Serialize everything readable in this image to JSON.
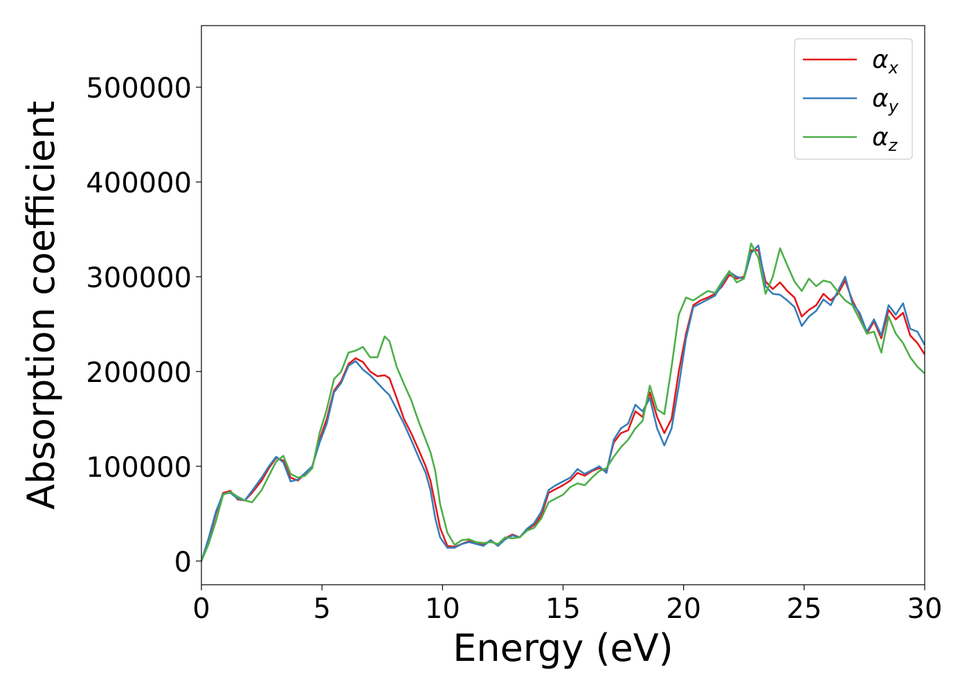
{
  "chart_data": {
    "type": "line",
    "title": "",
    "xlabel": "Energy (eV)",
    "ylabel": "Absorption coefficient",
    "xlim": [
      0,
      30
    ],
    "ylim": [
      -25000,
      565000
    ],
    "xticks": [
      0,
      5,
      10,
      15,
      20,
      25,
      30
    ],
    "yticks": [
      0,
      100000,
      200000,
      300000,
      400000,
      500000
    ],
    "grid": false,
    "legend_position": "top-right",
    "series": [
      {
        "name": "α_x",
        "base": "α",
        "sub": "x",
        "color": "#e41a1c",
        "points": [
          [
            0,
            0
          ],
          [
            0.3,
            22000
          ],
          [
            0.6,
            50000
          ],
          [
            0.9,
            72000
          ],
          [
            1.2,
            74000
          ],
          [
            1.5,
            65000
          ],
          [
            1.8,
            64000
          ],
          [
            2.1,
            72000
          ],
          [
            2.5,
            85000
          ],
          [
            2.8,
            98000
          ],
          [
            3.1,
            109000
          ],
          [
            3.4,
            106000
          ],
          [
            3.7,
            88000
          ],
          [
            4.0,
            85000
          ],
          [
            4.3,
            92000
          ],
          [
            4.6,
            100000
          ],
          [
            4.9,
            128000
          ],
          [
            5.2,
            150000
          ],
          [
            5.5,
            180000
          ],
          [
            5.8,
            190000
          ],
          [
            6.1,
            208000
          ],
          [
            6.4,
            214000
          ],
          [
            6.7,
            210000
          ],
          [
            7.0,
            200000
          ],
          [
            7.3,
            195000
          ],
          [
            7.6,
            196000
          ],
          [
            7.8,
            193000
          ],
          [
            8.1,
            172000
          ],
          [
            8.4,
            150000
          ],
          [
            8.7,
            135000
          ],
          [
            9.0,
            118000
          ],
          [
            9.3,
            100000
          ],
          [
            9.5,
            85000
          ],
          [
            9.7,
            60000
          ],
          [
            9.9,
            35000
          ],
          [
            10.2,
            16000
          ],
          [
            10.5,
            15000
          ],
          [
            10.8,
            18000
          ],
          [
            11.1,
            21000
          ],
          [
            11.4,
            20000
          ],
          [
            11.7,
            17000
          ],
          [
            12.0,
            22000
          ],
          [
            12.3,
            16000
          ],
          [
            12.6,
            24000
          ],
          [
            12.9,
            28000
          ],
          [
            13.2,
            25000
          ],
          [
            13.5,
            33000
          ],
          [
            13.8,
            38000
          ],
          [
            14.1,
            48000
          ],
          [
            14.4,
            72000
          ],
          [
            14.7,
            76000
          ],
          [
            15.0,
            80000
          ],
          [
            15.3,
            85000
          ],
          [
            15.6,
            93000
          ],
          [
            15.9,
            90000
          ],
          [
            16.2,
            95000
          ],
          [
            16.5,
            98000
          ],
          [
            16.8,
            95000
          ],
          [
            17.1,
            125000
          ],
          [
            17.4,
            135000
          ],
          [
            17.7,
            138000
          ],
          [
            18.0,
            158000
          ],
          [
            18.3,
            152000
          ],
          [
            18.6,
            178000
          ],
          [
            18.9,
            152000
          ],
          [
            19.2,
            135000
          ],
          [
            19.5,
            150000
          ],
          [
            19.8,
            200000
          ],
          [
            20.1,
            240000
          ],
          [
            20.4,
            270000
          ],
          [
            20.7,
            275000
          ],
          [
            21.0,
            278000
          ],
          [
            21.3,
            282000
          ],
          [
            21.6,
            290000
          ],
          [
            21.9,
            302000
          ],
          [
            22.2,
            298000
          ],
          [
            22.5,
            300000
          ],
          [
            22.8,
            328000
          ],
          [
            23.1,
            328000
          ],
          [
            23.4,
            295000
          ],
          [
            23.7,
            287000
          ],
          [
            24.0,
            294000
          ],
          [
            24.3,
            285000
          ],
          [
            24.6,
            278000
          ],
          [
            24.9,
            258000
          ],
          [
            25.2,
            265000
          ],
          [
            25.5,
            270000
          ],
          [
            25.8,
            282000
          ],
          [
            26.1,
            275000
          ],
          [
            26.4,
            282000
          ],
          [
            26.7,
            296000
          ],
          [
            27.0,
            275000
          ],
          [
            27.3,
            260000
          ],
          [
            27.6,
            240000
          ],
          [
            27.9,
            253000
          ],
          [
            28.2,
            235000
          ],
          [
            28.5,
            265000
          ],
          [
            28.8,
            255000
          ],
          [
            29.1,
            262000
          ],
          [
            29.4,
            238000
          ],
          [
            29.7,
            230000
          ],
          [
            30.0,
            218000
          ]
        ]
      },
      {
        "name": "α_y",
        "base": "α",
        "sub": "y",
        "color": "#377eb8",
        "points": [
          [
            0,
            0
          ],
          [
            0.3,
            24000
          ],
          [
            0.6,
            52000
          ],
          [
            0.9,
            71000
          ],
          [
            1.2,
            72000
          ],
          [
            1.5,
            66000
          ],
          [
            1.8,
            64000
          ],
          [
            2.1,
            74000
          ],
          [
            2.5,
            88000
          ],
          [
            2.8,
            100000
          ],
          [
            3.1,
            110000
          ],
          [
            3.4,
            104000
          ],
          [
            3.7,
            84000
          ],
          [
            4.0,
            86000
          ],
          [
            4.3,
            93000
          ],
          [
            4.6,
            100000
          ],
          [
            4.9,
            125000
          ],
          [
            5.2,
            145000
          ],
          [
            5.5,
            178000
          ],
          [
            5.8,
            188000
          ],
          [
            6.1,
            206000
          ],
          [
            6.4,
            211000
          ],
          [
            6.7,
            202000
          ],
          [
            7.0,
            196000
          ],
          [
            7.3,
            188000
          ],
          [
            7.6,
            180000
          ],
          [
            7.8,
            175000
          ],
          [
            8.1,
            160000
          ],
          [
            8.4,
            145000
          ],
          [
            8.7,
            128000
          ],
          [
            9.0,
            110000
          ],
          [
            9.3,
            93000
          ],
          [
            9.5,
            75000
          ],
          [
            9.7,
            45000
          ],
          [
            9.9,
            25000
          ],
          [
            10.2,
            14000
          ],
          [
            10.5,
            14000
          ],
          [
            10.8,
            18000
          ],
          [
            11.1,
            20000
          ],
          [
            11.4,
            18000
          ],
          [
            11.7,
            16000
          ],
          [
            12.0,
            22000
          ],
          [
            12.3,
            16000
          ],
          [
            12.6,
            23000
          ],
          [
            12.9,
            27000
          ],
          [
            13.2,
            25000
          ],
          [
            13.5,
            34000
          ],
          [
            13.8,
            40000
          ],
          [
            14.1,
            52000
          ],
          [
            14.4,
            75000
          ],
          [
            14.7,
            80000
          ],
          [
            15.0,
            84000
          ],
          [
            15.3,
            88000
          ],
          [
            15.6,
            97000
          ],
          [
            15.9,
            92000
          ],
          [
            16.2,
            96000
          ],
          [
            16.5,
            100000
          ],
          [
            16.8,
            93000
          ],
          [
            17.1,
            128000
          ],
          [
            17.4,
            140000
          ],
          [
            17.7,
            145000
          ],
          [
            18.0,
            165000
          ],
          [
            18.3,
            158000
          ],
          [
            18.6,
            172000
          ],
          [
            18.9,
            140000
          ],
          [
            19.2,
            122000
          ],
          [
            19.5,
            140000
          ],
          [
            19.8,
            185000
          ],
          [
            20.1,
            235000
          ],
          [
            20.4,
            268000
          ],
          [
            20.7,
            272000
          ],
          [
            21.0,
            276000
          ],
          [
            21.3,
            280000
          ],
          [
            21.6,
            292000
          ],
          [
            21.9,
            305000
          ],
          [
            22.2,
            300000
          ],
          [
            22.5,
            298000
          ],
          [
            22.8,
            325000
          ],
          [
            23.1,
            333000
          ],
          [
            23.4,
            290000
          ],
          [
            23.7,
            282000
          ],
          [
            24.0,
            281000
          ],
          [
            24.3,
            275000
          ],
          [
            24.6,
            268000
          ],
          [
            24.9,
            248000
          ],
          [
            25.2,
            258000
          ],
          [
            25.5,
            264000
          ],
          [
            25.8,
            276000
          ],
          [
            26.1,
            270000
          ],
          [
            26.4,
            285000
          ],
          [
            26.7,
            300000
          ],
          [
            27.0,
            272000
          ],
          [
            27.3,
            262000
          ],
          [
            27.6,
            242000
          ],
          [
            27.9,
            255000
          ],
          [
            28.2,
            238000
          ],
          [
            28.5,
            270000
          ],
          [
            28.8,
            260000
          ],
          [
            29.1,
            272000
          ],
          [
            29.4,
            245000
          ],
          [
            29.7,
            242000
          ],
          [
            30.0,
            228000
          ]
        ]
      },
      {
        "name": "α_z",
        "base": "α",
        "sub": "z",
        "color": "#4daf4a",
        "points": [
          [
            0,
            0
          ],
          [
            0.3,
            18000
          ],
          [
            0.6,
            42000
          ],
          [
            0.9,
            70000
          ],
          [
            1.2,
            73000
          ],
          [
            1.5,
            68000
          ],
          [
            1.8,
            64000
          ],
          [
            2.1,
            62000
          ],
          [
            2.5,
            75000
          ],
          [
            2.8,
            90000
          ],
          [
            3.1,
            105000
          ],
          [
            3.4,
            111000
          ],
          [
            3.7,
            92000
          ],
          [
            4.0,
            88000
          ],
          [
            4.3,
            90000
          ],
          [
            4.6,
            98000
          ],
          [
            4.9,
            135000
          ],
          [
            5.2,
            160000
          ],
          [
            5.5,
            192000
          ],
          [
            5.8,
            200000
          ],
          [
            6.1,
            220000
          ],
          [
            6.4,
            222000
          ],
          [
            6.7,
            226000
          ],
          [
            7.0,
            215000
          ],
          [
            7.3,
            215000
          ],
          [
            7.6,
            237000
          ],
          [
            7.8,
            232000
          ],
          [
            8.1,
            205000
          ],
          [
            8.4,
            187000
          ],
          [
            8.7,
            170000
          ],
          [
            9.0,
            148000
          ],
          [
            9.3,
            128000
          ],
          [
            9.5,
            115000
          ],
          [
            9.7,
            95000
          ],
          [
            9.9,
            60000
          ],
          [
            10.2,
            30000
          ],
          [
            10.5,
            17000
          ],
          [
            10.8,
            22000
          ],
          [
            11.1,
            23000
          ],
          [
            11.4,
            20000
          ],
          [
            11.7,
            19000
          ],
          [
            12.0,
            20000
          ],
          [
            12.3,
            18000
          ],
          [
            12.6,
            25000
          ],
          [
            12.9,
            24000
          ],
          [
            13.2,
            25000
          ],
          [
            13.5,
            32000
          ],
          [
            13.8,
            35000
          ],
          [
            14.1,
            45000
          ],
          [
            14.4,
            62000
          ],
          [
            14.7,
            66000
          ],
          [
            15.0,
            70000
          ],
          [
            15.3,
            78000
          ],
          [
            15.6,
            82000
          ],
          [
            15.9,
            80000
          ],
          [
            16.2,
            88000
          ],
          [
            16.5,
            95000
          ],
          [
            16.8,
            98000
          ],
          [
            17.1,
            110000
          ],
          [
            17.4,
            120000
          ],
          [
            17.7,
            128000
          ],
          [
            18.0,
            140000
          ],
          [
            18.3,
            148000
          ],
          [
            18.6,
            185000
          ],
          [
            18.9,
            160000
          ],
          [
            19.2,
            155000
          ],
          [
            19.5,
            205000
          ],
          [
            19.8,
            260000
          ],
          [
            20.1,
            278000
          ],
          [
            20.4,
            275000
          ],
          [
            20.7,
            280000
          ],
          [
            21.0,
            285000
          ],
          [
            21.3,
            283000
          ],
          [
            21.6,
            295000
          ],
          [
            21.9,
            306000
          ],
          [
            22.2,
            294000
          ],
          [
            22.5,
            298000
          ],
          [
            22.8,
            335000
          ],
          [
            23.1,
            320000
          ],
          [
            23.4,
            282000
          ],
          [
            23.7,
            300000
          ],
          [
            24.0,
            330000
          ],
          [
            24.3,
            312000
          ],
          [
            24.6,
            295000
          ],
          [
            24.9,
            285000
          ],
          [
            25.2,
            298000
          ],
          [
            25.5,
            290000
          ],
          [
            25.8,
            296000
          ],
          [
            26.1,
            294000
          ],
          [
            26.4,
            284000
          ],
          [
            26.7,
            275000
          ],
          [
            27.0,
            270000
          ],
          [
            27.3,
            255000
          ],
          [
            27.6,
            240000
          ],
          [
            27.9,
            242000
          ],
          [
            28.2,
            220000
          ],
          [
            28.5,
            258000
          ],
          [
            28.8,
            240000
          ],
          [
            29.1,
            230000
          ],
          [
            29.4,
            215000
          ],
          [
            29.7,
            205000
          ],
          [
            30.0,
            198000
          ]
        ]
      }
    ]
  }
}
